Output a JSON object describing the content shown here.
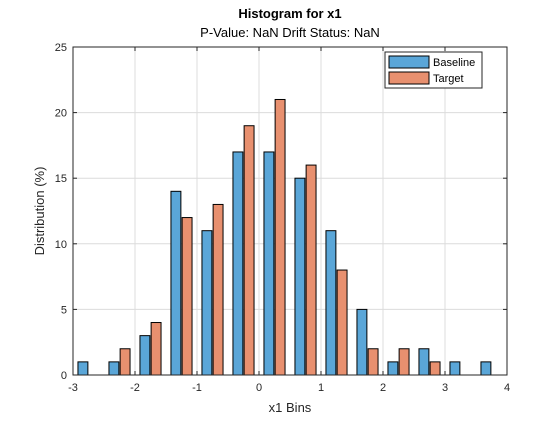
{
  "chart_data": {
    "type": "bar",
    "title": "Histogram for x1",
    "subtitle": "P-Value: NaN Drift Status: NaN",
    "xlabel": "x1 Bins",
    "ylabel": "Distribution (%)",
    "xlim": [
      -3,
      4
    ],
    "ylim": [
      0,
      25
    ],
    "xticks": [
      -3,
      -2,
      -1,
      0,
      1,
      2,
      3,
      4
    ],
    "xtick_labels": [
      "-3",
      "-2",
      "-1",
      "0",
      "1",
      "2",
      "3",
      "4"
    ],
    "yticks": [
      0,
      5,
      10,
      15,
      20,
      25
    ],
    "ytick_labels": [
      "0",
      "5",
      "10",
      "15",
      "20",
      "25"
    ],
    "grid": true,
    "legend_position": "top-right",
    "bin_centers": [
      -2.75,
      -2.25,
      -1.75,
      -1.25,
      -0.75,
      -0.25,
      0.25,
      0.75,
      1.25,
      1.75,
      2.25,
      2.75,
      3.25,
      3.75
    ],
    "series": [
      {
        "name": "Baseline",
        "color": "#5aa6d8",
        "values": [
          1,
          1,
          3,
          14,
          11,
          17,
          17,
          15,
          11,
          5,
          1,
          2,
          1,
          1
        ]
      },
      {
        "name": "Target",
        "color": "#e8906f",
        "values": [
          0,
          2,
          4,
          12,
          13,
          19,
          21,
          16,
          8,
          2,
          2,
          1,
          0,
          0
        ]
      }
    ]
  }
}
